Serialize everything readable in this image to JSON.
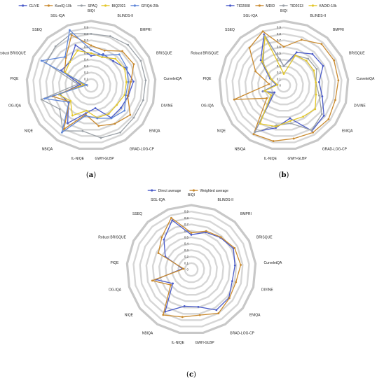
{
  "chart_data": [
    {
      "type": "radar",
      "panel_label": "a",
      "axes": [
        "BIQI",
        "BLINDS-II",
        "BMPRI",
        "BRISQUE",
        "CurveletQA",
        "DIVINE",
        "ENIQA",
        "GRAD-LOG-CP",
        "GWH-GLBP",
        "IL-NIQE",
        "NBIQA",
        "NIQE",
        "OG-IQA",
        "PIQE",
        "Robust BRISQUE",
        "SSEQ",
        "SGL-IQA"
      ],
      "ticks": [
        "0",
        "0.1",
        "0.2",
        "0.3",
        "0.4",
        "0.5",
        "0.6",
        "0.7",
        "0.8",
        "0.9"
      ],
      "rlim": [
        0,
        1
      ],
      "legend_position": "top",
      "series": [
        {
          "name": "CLIVE",
          "color": "#4a5bc9",
          "values": [
            0.46,
            0.52,
            0.51,
            0.6,
            0.66,
            0.6,
            0.58,
            0.59,
            0.36,
            0.44,
            0.69,
            0.44,
            0.5,
            0.17,
            0.52,
            0.49,
            0.67
          ]
        },
        {
          "name": "KonIQ-10k",
          "color": "#c98a2f",
          "values": [
            0.62,
            0.58,
            0.72,
            0.74,
            0.62,
            0.59,
            0.76,
            0.7,
            0.64,
            0.46,
            0.8,
            0.42,
            0.62,
            0.12,
            0.46,
            0.58,
            0.84
          ]
        },
        {
          "name": "SPAQ",
          "color": "#9aa0a6",
          "values": [
            0.8,
            0.82,
            0.85,
            0.86,
            0.85,
            0.84,
            0.83,
            0.86,
            0.83,
            0.72,
            0.83,
            0.61,
            0.8,
            0.21,
            0.78,
            0.82,
            0.86
          ]
        },
        {
          "name": "BIQ2021",
          "color": "#e3c72b",
          "values": [
            0.5,
            0.47,
            0.56,
            0.58,
            0.55,
            0.54,
            0.5,
            0.52,
            0.51,
            0.4,
            0.55,
            0.4,
            0.52,
            0.11,
            0.45,
            0.49,
            0.58
          ]
        },
        {
          "name": "GFIQA-20k",
          "color": "#5f86d8",
          "values": [
            0.55,
            0.5,
            0.65,
            0.62,
            0.58,
            0.56,
            0.65,
            0.6,
            0.52,
            0.48,
            0.86,
            0.43,
            0.75,
            0.07,
            0.86,
            0.6,
            0.92
          ]
        }
      ]
    },
    {
      "type": "radar",
      "panel_label": "b",
      "axes": [
        "BIQI",
        "BLINDS-II",
        "BMPRI",
        "BRISQUE",
        "CurveletQA",
        "DIVINE",
        "ENIQA",
        "GRAD-LOG-CP",
        "GWH-GLBP",
        "IL-NIQE",
        "NBIQA",
        "NIQE",
        "OG-IQA",
        "PIQE",
        "Robust BRISQUE",
        "SSEQ",
        "SGL-IQA"
      ],
      "ticks": [
        "0",
        "0.1",
        "0.2",
        "0.3",
        "0.4",
        "0.5",
        "0.6",
        "0.7",
        "0.8",
        "0.9"
      ],
      "rlim": [
        0,
        1
      ],
      "legend_position": "top",
      "series": [
        {
          "name": "TID2008",
          "color": "#4a5bc9",
          "values": [
            0.3,
            0.55,
            0.66,
            0.68,
            0.55,
            0.62,
            0.78,
            0.83,
            0.52,
            0.67,
            0.85,
            0.18,
            0.34,
            0.12,
            0.24,
            0.53,
            0.85
          ]
        },
        {
          "name": "MDID",
          "color": "#c98a2f",
          "values": [
            0.6,
            0.76,
            0.87,
            0.87,
            0.85,
            0.83,
            0.87,
            0.86,
            0.84,
            0.88,
            0.89,
            0.33,
            0.8,
            0.23,
            0.49,
            0.79,
            0.9
          ]
        },
        {
          "name": "TID2013",
          "color": "#9aa0a6",
          "values": [
            0.3,
            0.5,
            0.56,
            0.57,
            0.5,
            0.57,
            0.74,
            0.82,
            0.6,
            0.63,
            0.86,
            0.21,
            0.33,
            0.1,
            0.23,
            0.47,
            0.83
          ]
        },
        {
          "name": "KADID-10k",
          "color": "#e3c72b",
          "values": [
            0.18,
            0.5,
            0.52,
            0.52,
            0.5,
            0.52,
            0.61,
            0.57,
            0.56,
            0.65,
            0.7,
            0.25,
            0.3,
            0.1,
            0.21,
            0.5,
            0.8
          ]
        }
      ]
    },
    {
      "type": "radar",
      "panel_label": "c",
      "axes": [
        "BIQI",
        "BLINDS-II",
        "BMPRI",
        "BRISQUE",
        "CurveletQA",
        "DIVINE",
        "ENIQA",
        "GRAD-LOG-CP",
        "GWH-GLBP",
        "IL-NIQE",
        "NBIQA",
        "NIQE",
        "OG-IQA",
        "PIQE",
        "Robust BRISQUE",
        "SSEQ",
        "SGL-IQA"
      ],
      "ticks": [
        "0",
        "0.1",
        "0.2",
        "0.3",
        "0.4",
        "0.5",
        "0.6",
        "0.7",
        "0.8",
        "0.9"
      ],
      "rlim": [
        0,
        1
      ],
      "legend_position": "top",
      "series": [
        {
          "name": "Direct average",
          "color": "#4a5bc9",
          "values": [
            0.54,
            0.62,
            0.67,
            0.73,
            0.68,
            0.66,
            0.73,
            0.74,
            0.59,
            0.58,
            0.77,
            0.36,
            0.57,
            0.14,
            0.45,
            0.63,
            0.82
          ]
        },
        {
          "name": "Weighted average",
          "color": "#c98a2f",
          "values": [
            0.57,
            0.64,
            0.68,
            0.75,
            0.77,
            0.72,
            0.74,
            0.8,
            0.72,
            0.75,
            0.83,
            0.4,
            0.63,
            0.12,
            0.57,
            0.68,
            0.86
          ]
        }
      ]
    }
  ]
}
